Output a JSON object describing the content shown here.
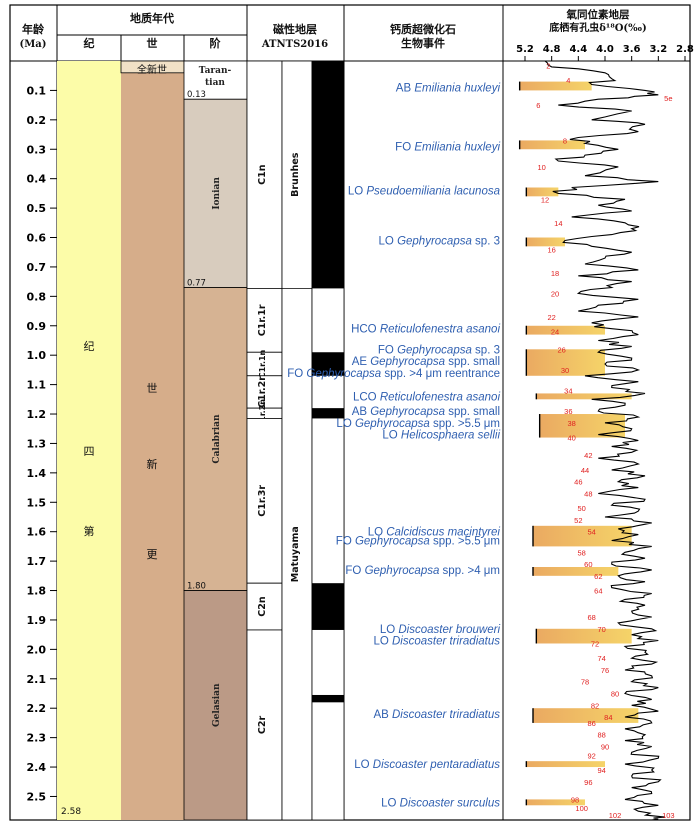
{
  "colors": {
    "period": "#fcfca8",
    "epoch": "#d6ad8a",
    "holocene": "#f1e1c6",
    "tarantian": "#ffffff",
    "ionian": "#d8ccbe",
    "calabrian": "#d6b393",
    "gelasian": "#bb9a86",
    "event_text": "#2f5fb0",
    "bar_fill": "#f4cf58",
    "bar_edge": "#e8a050",
    "isotope_numbers": "#e02020"
  },
  "header": {
    "age_title": "年龄",
    "age_unit": "(Ma)",
    "geo_title": "地质年代",
    "col_period": "纪",
    "col_epoch": "世",
    "col_stage": "阶",
    "mag_title": "磁性地层",
    "mag_sub": "ATNTS2016",
    "bio_title1": "钙质超微化石",
    "bio_title2": "生物事件",
    "iso_title1": "氧同位素地层",
    "iso_title2": "底栖有孔虫δ¹⁸O(‰)"
  },
  "age_ticks": [
    "0.1",
    "0.2",
    "0.3",
    "0.4",
    "0.5",
    "0.6",
    "0.7",
    "0.8",
    "0.9",
    "1.0",
    "1.1",
    "1.2",
    "1.3",
    "1.4",
    "1.5",
    "1.6",
    "1.7",
    "1.8",
    "1.9",
    "2.0",
    "2.1",
    "2.2",
    "2.3",
    "2.4",
    "2.5"
  ],
  "iso_ticks": [
    "5.2",
    "4.8",
    "4.4",
    "4.0",
    "3.6",
    "3.2",
    "2.8"
  ],
  "period_label": [
    "第",
    "四",
    "纪"
  ],
  "epoch_label": [
    "更",
    "新",
    "世"
  ],
  "holocene_label": "全新世",
  "stages": [
    {
      "name": "Taran-",
      "name2": "tian",
      "top": 0,
      "base": 0.13,
      "color_key": "tarantian"
    },
    {
      "name": "Ionian",
      "top": 0.13,
      "base": 0.77,
      "color_key": "ionian"
    },
    {
      "name": "Calabrian",
      "top": 0.77,
      "base": 1.8,
      "color_key": "calabrian"
    },
    {
      "name": "Gelasian",
      "top": 1.8,
      "base": 2.58,
      "color_key": "gelasian"
    }
  ],
  "boundary_labels": [
    "0.13",
    "0.77",
    "1.80",
    "2.58"
  ],
  "chrons": [
    {
      "name": "C1n",
      "top": 0,
      "base": 0.773
    },
    {
      "name": "C1r.1r",
      "top": 0.773,
      "base": 0.99
    },
    {
      "name": "C1r.1n",
      "top": 0.99,
      "base": 1.07
    },
    {
      "name": "C1r.2r",
      "top": 1.07,
      "base": 1.18
    },
    {
      "name": "C1r.2n",
      "top": 1.18,
      "base": 1.215
    },
    {
      "name": "C1r.3r",
      "top": 1.215,
      "base": 1.775
    },
    {
      "name": "C2n",
      "top": 1.775,
      "base": 1.934
    },
    {
      "name": "C2r",
      "top": 1.934,
      "base": 2.58
    }
  ],
  "polarity_black": [
    [
      0,
      0.773
    ],
    [
      0.99,
      1.07
    ],
    [
      1.18,
      1.215
    ],
    [
      1.775,
      1.934
    ],
    [
      2.155,
      2.18
    ]
  ],
  "chron_names": [
    "Brunhes",
    "Matuyama"
  ],
  "events": [
    {
      "prefix": "AB ",
      "taxon": "Emiliania huxleyi",
      "suffix": "",
      "age": 0.09
    },
    {
      "prefix": "FO ",
      "taxon": "Emiliania huxleyi",
      "suffix": "",
      "age": 0.29
    },
    {
      "prefix": "LO ",
      "taxon": "Pseudoemiliania lacunosa",
      "suffix": "",
      "age": 0.44
    },
    {
      "prefix": "LO ",
      "taxon": "Gephyrocapsa",
      "suffix": " sp. 3",
      "age": 0.61
    },
    {
      "prefix": "HCO ",
      "taxon": "Reticulofenestra asanoi",
      "suffix": "",
      "age": 0.91
    },
    {
      "prefix": "FO ",
      "taxon": "Gephyrocapsa",
      "suffix": " sp. 3",
      "age": 0.98
    },
    {
      "prefix": "AE ",
      "taxon": "Gephyrocapsa",
      "suffix": " spp. small",
      "age": 1.02
    },
    {
      "prefix": "FO ",
      "taxon": "Gephyrocapsa",
      "suffix": " spp. >4 μm reentrance",
      "age": 1.06
    },
    {
      "prefix": "LCO ",
      "taxon": "Reticulofenestra asanoi",
      "suffix": "",
      "age": 1.14
    },
    {
      "prefix": "AB ",
      "taxon": "Gephyrocapsa",
      "suffix": " spp. small",
      "age": 1.19
    },
    {
      "prefix": "LO ",
      "taxon": "Gephyrocapsa",
      "suffix": " spp. >5.5 μm",
      "age": 1.23
    },
    {
      "prefix": "LO ",
      "taxon": "Helicosphaera sellii",
      "suffix": "",
      "age": 1.27
    },
    {
      "prefix": "LO ",
      "taxon": "Calcidiscus macintyrei",
      "suffix": "",
      "age": 1.6
    },
    {
      "prefix": "FO ",
      "taxon": "Gephyrocapsa",
      "suffix": " spp. >5.5 μm",
      "age": 1.63
    },
    {
      "prefix": "FO ",
      "taxon": "Gephyrocapsa",
      "suffix": " spp. >4 μm",
      "age": 1.73
    },
    {
      "prefix": "LO ",
      "taxon": "Discoaster brouweri",
      "suffix": "",
      "age": 1.93
    },
    {
      "prefix": "LO ",
      "taxon": "Discoaster triradiatus",
      "suffix": "",
      "age": 1.97
    },
    {
      "prefix": "AB ",
      "taxon": "Discoaster triradiatus",
      "suffix": "",
      "age": 2.22
    },
    {
      "prefix": "LO ",
      "taxon": "Discoaster pentaradiatus",
      "suffix": "",
      "age": 2.39
    },
    {
      "prefix": "LO ",
      "taxon": "Discoaster surculus",
      "suffix": "",
      "age": 2.52
    }
  ],
  "chart_data": {
    "type": "line",
    "title": "",
    "xlabel": "底栖有孔虫δ¹⁸O(‰)",
    "ylabel": "年龄(Ma)",
    "xlim": [
      5.2,
      2.8
    ],
    "ylim": [
      0,
      2.58
    ],
    "x_ticks": [
      5.2,
      4.8,
      4.4,
      4.0,
      3.6,
      3.2,
      2.8
    ],
    "y_ticks": [
      0.1,
      0.2,
      0.3,
      0.4,
      0.5,
      0.6,
      0.7,
      0.8,
      0.9,
      1.0,
      1.1,
      1.2,
      1.3,
      1.4,
      1.5,
      1.6,
      1.7,
      1.8,
      1.9,
      2.0,
      2.1,
      2.2,
      2.3,
      2.4,
      2.5
    ],
    "series": [
      {
        "name": "",
        "points": [
          [
            0.0,
            4.9
          ],
          [
            0.02,
            4.8
          ],
          [
            0.04,
            4.0
          ],
          [
            0.06,
            3.9
          ],
          [
            0.08,
            4.2
          ],
          [
            0.1,
            3.4
          ],
          [
            0.115,
            3.2
          ],
          [
            0.13,
            4.1
          ],
          [
            0.15,
            4.7
          ],
          [
            0.17,
            3.6
          ],
          [
            0.2,
            4.2
          ],
          [
            0.215,
            3.4
          ],
          [
            0.24,
            3.5
          ],
          [
            0.26,
            4.4
          ],
          [
            0.28,
            4.3
          ],
          [
            0.3,
            3.8
          ],
          [
            0.32,
            4.3
          ],
          [
            0.34,
            4.7
          ],
          [
            0.36,
            3.8
          ],
          [
            0.39,
            4.3
          ],
          [
            0.41,
            3.2
          ],
          [
            0.43,
            4.5
          ],
          [
            0.45,
            4.7
          ],
          [
            0.47,
            3.7
          ],
          [
            0.49,
            4.1
          ],
          [
            0.51,
            3.6
          ],
          [
            0.53,
            4.5
          ],
          [
            0.55,
            3.7
          ],
          [
            0.57,
            3.6
          ],
          [
            0.59,
            3.9
          ],
          [
            0.61,
            4.6
          ],
          [
            0.63,
            4.2
          ],
          [
            0.65,
            3.6
          ],
          [
            0.67,
            4.0
          ],
          [
            0.69,
            4.3
          ],
          [
            0.71,
            3.5
          ],
          [
            0.73,
            4.4
          ],
          [
            0.75,
            3.6
          ],
          [
            0.77,
            3.9
          ],
          [
            0.79,
            4.4
          ],
          [
            0.81,
            3.5
          ],
          [
            0.83,
            4.1
          ],
          [
            0.85,
            4.4
          ],
          [
            0.87,
            3.5
          ],
          [
            0.89,
            4.2
          ],
          [
            0.91,
            3.9
          ],
          [
            0.93,
            3.5
          ],
          [
            0.95,
            4.1
          ],
          [
            0.97,
            3.6
          ],
          [
            0.99,
            4.1
          ],
          [
            1.01,
            3.6
          ],
          [
            1.03,
            4.0
          ],
          [
            1.05,
            3.5
          ],
          [
            1.07,
            4.3
          ],
          [
            1.09,
            3.5
          ],
          [
            1.11,
            3.9
          ],
          [
            1.13,
            3.4
          ],
          [
            1.15,
            4.2
          ],
          [
            1.17,
            3.7
          ],
          [
            1.19,
            4.1
          ],
          [
            1.21,
            3.5
          ],
          [
            1.23,
            4.0
          ],
          [
            1.25,
            3.6
          ],
          [
            1.27,
            4.1
          ],
          [
            1.29,
            3.5
          ],
          [
            1.31,
            3.9
          ],
          [
            1.33,
            3.6
          ],
          [
            1.35,
            4.1
          ],
          [
            1.37,
            3.5
          ],
          [
            1.39,
            3.9
          ],
          [
            1.41,
            3.4
          ],
          [
            1.43,
            3.8
          ],
          [
            1.45,
            3.5
          ],
          [
            1.47,
            4.1
          ],
          [
            1.49,
            3.4
          ],
          [
            1.51,
            3.9
          ],
          [
            1.53,
            3.5
          ],
          [
            1.55,
            4.0
          ],
          [
            1.57,
            3.3
          ],
          [
            1.59,
            3.8
          ],
          [
            1.61,
            3.5
          ],
          [
            1.63,
            3.9
          ],
          [
            1.65,
            3.3
          ],
          [
            1.67,
            3.7
          ],
          [
            1.69,
            3.4
          ],
          [
            1.71,
            3.9
          ],
          [
            1.73,
            3.3
          ],
          [
            1.75,
            3.8
          ],
          [
            1.77,
            3.4
          ],
          [
            1.79,
            3.9
          ],
          [
            1.81,
            3.3
          ],
          [
            1.83,
            3.7
          ],
          [
            1.85,
            3.4
          ],
          [
            1.87,
            3.6
          ],
          [
            1.89,
            3.3
          ],
          [
            1.91,
            3.8
          ],
          [
            1.93,
            3.3
          ],
          [
            1.95,
            3.6
          ],
          [
            1.97,
            3.2
          ],
          [
            1.99,
            3.7
          ],
          [
            2.01,
            3.4
          ],
          [
            2.03,
            3.6
          ],
          [
            2.05,
            3.3
          ],
          [
            2.07,
            3.7
          ],
          [
            2.09,
            3.3
          ],
          [
            2.11,
            3.6
          ],
          [
            2.13,
            3.2
          ],
          [
            2.15,
            3.7
          ],
          [
            2.17,
            3.3
          ],
          [
            2.19,
            3.6
          ],
          [
            2.21,
            3.2
          ],
          [
            2.23,
            3.7
          ],
          [
            2.25,
            3.3
          ],
          [
            2.27,
            3.7
          ],
          [
            2.29,
            3.4
          ],
          [
            2.31,
            3.7
          ],
          [
            2.33,
            3.3
          ],
          [
            2.35,
            3.6
          ],
          [
            2.37,
            3.2
          ],
          [
            2.39,
            3.7
          ],
          [
            2.41,
            3.3
          ],
          [
            2.43,
            3.6
          ],
          [
            2.45,
            3.2
          ],
          [
            2.47,
            3.6
          ],
          [
            2.49,
            3.3
          ],
          [
            2.51,
            3.7
          ],
          [
            2.53,
            3.2
          ],
          [
            2.55,
            3.5
          ],
          [
            2.57,
            3.1
          ],
          [
            2.58,
            3.3
          ]
        ]
      }
    ],
    "stage_labels": [
      {
        "label": "2",
        "age": 0.015,
        "x": 4.85
      },
      {
        "label": "4",
        "age": 0.065,
        "x": 4.55
      },
      {
        "label": "5e",
        "age": 0.125,
        "x": 3.05
      },
      {
        "label": "6",
        "age": 0.15,
        "x": 5.0
      },
      {
        "label": "8",
        "age": 0.27,
        "x": 4.6
      },
      {
        "label": "10",
        "age": 0.36,
        "x": 4.95
      },
      {
        "label": "12",
        "age": 0.47,
        "x": 4.9
      },
      {
        "label": "14",
        "age": 0.55,
        "x": 4.7
      },
      {
        "label": "16",
        "age": 0.64,
        "x": 4.8
      },
      {
        "label": "18",
        "age": 0.72,
        "x": 4.75
      },
      {
        "label": "20",
        "age": 0.79,
        "x": 4.75
      },
      {
        "label": "22",
        "age": 0.87,
        "x": 4.8
      },
      {
        "label": "24",
        "age": 0.92,
        "x": 4.75
      },
      {
        "label": "26",
        "age": 0.98,
        "x": 4.65
      },
      {
        "label": "30",
        "age": 1.05,
        "x": 4.6
      },
      {
        "label": "34",
        "age": 1.12,
        "x": 4.55
      },
      {
        "label": "36",
        "age": 1.19,
        "x": 4.55
      },
      {
        "label": "38",
        "age": 1.23,
        "x": 4.5
      },
      {
        "label": "40",
        "age": 1.28,
        "x": 4.5
      },
      {
        "label": "42",
        "age": 1.34,
        "x": 4.25
      },
      {
        "label": "44",
        "age": 1.39,
        "x": 4.3
      },
      {
        "label": "46",
        "age": 1.43,
        "x": 4.4
      },
      {
        "label": "48",
        "age": 1.47,
        "x": 4.25
      },
      {
        "label": "50",
        "age": 1.52,
        "x": 4.35
      },
      {
        "label": "52",
        "age": 1.56,
        "x": 4.4
      },
      {
        "label": "54",
        "age": 1.6,
        "x": 4.2
      },
      {
        "label": "58",
        "age": 1.67,
        "x": 4.35
      },
      {
        "label": "60",
        "age": 1.71,
        "x": 4.25
      },
      {
        "label": "62",
        "age": 1.75,
        "x": 4.1
      },
      {
        "label": "64",
        "age": 1.8,
        "x": 4.1
      },
      {
        "label": "68",
        "age": 1.89,
        "x": 4.2
      },
      {
        "label": "70",
        "age": 1.93,
        "x": 4.05
      },
      {
        "label": "72",
        "age": 1.98,
        "x": 4.15
      },
      {
        "label": "74",
        "age": 2.03,
        "x": 4.05
      },
      {
        "label": "76",
        "age": 2.07,
        "x": 4.0
      },
      {
        "label": "78",
        "age": 2.11,
        "x": 4.3
      },
      {
        "label": "80",
        "age": 2.15,
        "x": 3.85
      },
      {
        "label": "82",
        "age": 2.19,
        "x": 4.15
      },
      {
        "label": "84",
        "age": 2.23,
        "x": 3.95
      },
      {
        "label": "86",
        "age": 2.25,
        "x": 4.2
      },
      {
        "label": "88",
        "age": 2.29,
        "x": 4.05
      },
      {
        "label": "90",
        "age": 2.33,
        "x": 4.0
      },
      {
        "label": "92",
        "age": 2.36,
        "x": 4.2
      },
      {
        "label": "94",
        "age": 2.41,
        "x": 4.05
      },
      {
        "label": "96",
        "age": 2.45,
        "x": 4.25
      },
      {
        "label": "98",
        "age": 2.51,
        "x": 4.45
      },
      {
        "label": "100",
        "age": 2.54,
        "x": 4.35
      },
      {
        "label": "102",
        "age": 2.6,
        "x": 3.85
      },
      {
        "label": "103",
        "age": 2.6,
        "x": 3.05
      }
    ],
    "event_bars": [
      {
        "age_top": 0.07,
        "age_base": 0.1,
        "x_from": 5.1,
        "x_to": 4.2
      },
      {
        "age_top": 0.27,
        "age_base": 0.3,
        "x_from": 5.1,
        "x_to": 4.3
      },
      {
        "age_top": 0.43,
        "age_base": 0.46,
        "x_from": 5.0,
        "x_to": 4.7
      },
      {
        "age_top": 0.6,
        "age_base": 0.63,
        "x_from": 5.0,
        "x_to": 4.6
      },
      {
        "age_top": 0.9,
        "age_base": 0.93,
        "x_from": 5.0,
        "x_to": 4.0
      },
      {
        "age_top": 0.98,
        "age_base": 1.07,
        "x_from": 5.0,
        "x_to": 4.0
      },
      {
        "age_top": 1.13,
        "age_base": 1.15,
        "x_from": 4.85,
        "x_to": 3.6
      },
      {
        "age_top": 1.2,
        "age_base": 1.28,
        "x_from": 4.8,
        "x_to": 3.7
      },
      {
        "age_top": 1.58,
        "age_base": 1.65,
        "x_from": 4.9,
        "x_to": 3.6
      },
      {
        "age_top": 1.72,
        "age_base": 1.75,
        "x_from": 4.9,
        "x_to": 3.8
      },
      {
        "age_top": 1.93,
        "age_base": 1.98,
        "x_from": 4.85,
        "x_to": 3.6
      },
      {
        "age_top": 2.2,
        "age_base": 2.25,
        "x_from": 4.9,
        "x_to": 3.5
      },
      {
        "age_top": 2.38,
        "age_base": 2.4,
        "x_from": 5.0,
        "x_to": 4.0
      },
      {
        "age_top": 2.51,
        "age_base": 2.53,
        "x_from": 5.0,
        "x_to": 4.3
      }
    ]
  }
}
